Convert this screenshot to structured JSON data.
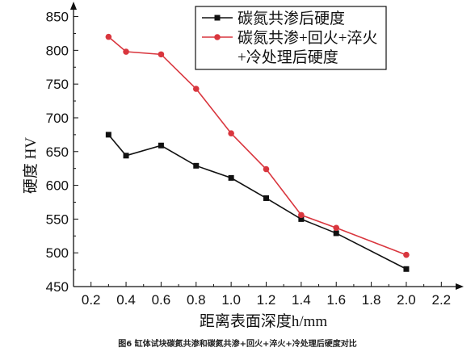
{
  "chart_data": {
    "type": "line",
    "caption": "图6 缸体试块碳氮共渗和碳氮共渗+回火+淬火+冷处理后硬度对比",
    "xlabel": "距离表面深度h/mm",
    "ylabel": "硬度 HV",
    "xlim": [
      0.1,
      2.3
    ],
    "ylim": [
      450,
      865
    ],
    "xticks": [
      0.2,
      0.4,
      0.6,
      0.8,
      1.0,
      1.2,
      1.4,
      1.6,
      1.8,
      2.0,
      2.2
    ],
    "xtick_labels": [
      "0.2",
      "0.4",
      "0.6",
      "0.8",
      "1.0",
      "1.2",
      "1.4",
      "1.6",
      "1.8",
      "2.0",
      "2.2"
    ],
    "yticks": [
      450,
      500,
      550,
      600,
      650,
      700,
      750,
      800,
      850
    ],
    "ytick_labels": [
      "450",
      "500",
      "550",
      "600",
      "650",
      "700",
      "750",
      "800",
      "850"
    ],
    "grid": false,
    "legend_position": "top-right",
    "series": [
      {
        "name": "碳氮共渗后硬度",
        "color": "#111111",
        "marker": "square",
        "x": [
          0.3,
          0.4,
          0.6,
          0.8,
          1.0,
          1.2,
          1.4,
          1.6,
          2.0
        ],
        "y": [
          675,
          644,
          659,
          629,
          611,
          581,
          550,
          529,
          476
        ]
      },
      {
        "name": "碳氮共渗+回火+淬火+冷处理后硬度",
        "legend_lines": [
          "碳氮共渗+回火+淬火",
          "+冷处理后硬度"
        ],
        "color": "#d9363e",
        "marker": "circle",
        "x": [
          0.3,
          0.4,
          0.6,
          0.8,
          1.0,
          1.2,
          1.4,
          1.6,
          2.0
        ],
        "y": [
          820,
          798,
          794,
          743,
          677,
          624,
          556,
          537,
          497
        ]
      }
    ]
  }
}
